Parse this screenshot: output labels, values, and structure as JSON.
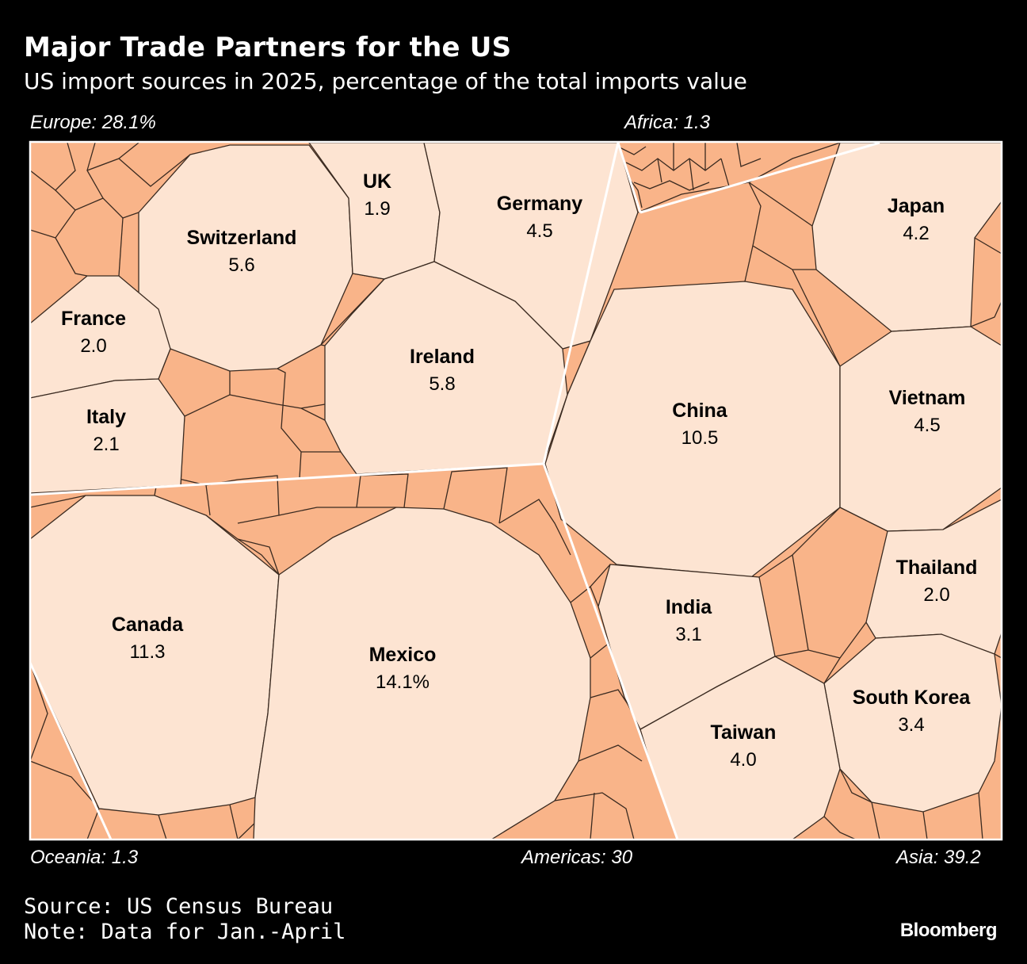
{
  "header": {
    "title": "Major Trade Partners for the US",
    "subtitle": "US import sources in 2025, percentage of the total imports value"
  },
  "colors": {
    "background": "#000000",
    "large_cell": "#FDE4D2",
    "small_cell": "#F9B489",
    "cell_border": "#3a2a20",
    "region_border": "#ffffff"
  },
  "chart_data": {
    "type": "voronoi-treemap",
    "regions": [
      {
        "name": "Europe",
        "label": "Europe: 28.1%",
        "value": 28.1
      },
      {
        "name": "Africa",
        "label": "Africa: 1.3",
        "value": 1.3
      },
      {
        "name": "Oceania",
        "label": "Oceania: 1.3",
        "value": 1.3
      },
      {
        "name": "Americas",
        "label": "Americas: 30",
        "value": 30
      },
      {
        "name": "Asia",
        "label": "Asia: 39.2",
        "value": 39.2
      }
    ],
    "countries": [
      {
        "name": "Switzerland",
        "value_label": "5.6",
        "value": 5.6,
        "region": "Europe"
      },
      {
        "name": "UK",
        "value_label": "1.9",
        "value": 1.9,
        "region": "Europe"
      },
      {
        "name": "Germany",
        "value_label": "4.5",
        "value": 4.5,
        "region": "Europe"
      },
      {
        "name": "France",
        "value_label": "2.0",
        "value": 2.0,
        "region": "Europe"
      },
      {
        "name": "Ireland",
        "value_label": "5.8",
        "value": 5.8,
        "region": "Europe"
      },
      {
        "name": "Italy",
        "value_label": "2.1",
        "value": 2.1,
        "region": "Europe"
      },
      {
        "name": "Japan",
        "value_label": "4.2",
        "value": 4.2,
        "region": "Asia"
      },
      {
        "name": "China",
        "value_label": "10.5",
        "value": 10.5,
        "region": "Asia"
      },
      {
        "name": "Vietnam",
        "value_label": "4.5",
        "value": 4.5,
        "region": "Asia"
      },
      {
        "name": "Thailand",
        "value_label": "2.0",
        "value": 2.0,
        "region": "Asia"
      },
      {
        "name": "India",
        "value_label": "3.1",
        "value": 3.1,
        "region": "Asia"
      },
      {
        "name": "South Korea",
        "value_label": "3.4",
        "value": 3.4,
        "region": "Asia"
      },
      {
        "name": "Taiwan",
        "value_label": "4.0",
        "value": 4.0,
        "region": "Asia"
      },
      {
        "name": "Canada",
        "value_label": "11.3",
        "value": 11.3,
        "region": "Americas"
      },
      {
        "name": "Mexico",
        "value_label": "14.1%",
        "value": 14.1,
        "region": "Americas"
      }
    ]
  },
  "footer": {
    "source": "Source: US Census Bureau",
    "note": "Note: Data for Jan.-April",
    "brand": "Bloomberg"
  }
}
